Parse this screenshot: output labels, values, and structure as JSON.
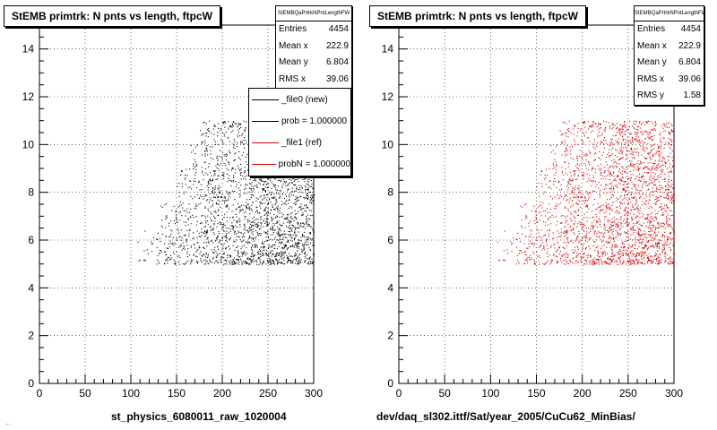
{
  "footer_text": "...",
  "colors": {
    "left_series": "#000000",
    "right_series": "#d40000",
    "legend_ref": "#d40000",
    "legend_new": "#000000"
  },
  "chart_data": [
    {
      "type": "scatter",
      "title": "StEMB primtrk: N pnts vs length, ftpcW",
      "xlabel": "st_physics_6080011_raw_1020004",
      "ylabel": "",
      "xlim": [
        0,
        300
      ],
      "ylim": [
        0,
        15
      ],
      "xticks": [
        "0",
        "50",
        "100",
        "150",
        "200",
        "250",
        "300"
      ],
      "yticks": [
        "0",
        "2",
        "4",
        "6",
        "8",
        "10",
        "12",
        "14"
      ],
      "grid": true,
      "series": [
        {
          "name": "_file0 (new)",
          "color": "#000000",
          "entries": 4454,
          "x_range": [
            105,
            300
          ],
          "y_range": [
            5,
            11
          ],
          "density": "dense"
        }
      ],
      "stats": {
        "header": "StEMBQaPrtrkNPntLengthFW",
        "rows": [
          {
            "label": "Entries",
            "value": "4454"
          },
          {
            "label": "Mean x",
            "value": "222.9"
          },
          {
            "label": "Mean y",
            "value": "6.804"
          },
          {
            "label": "RMS x",
            "value": "39.06"
          }
        ]
      },
      "legend": {
        "placement": "top-right",
        "entries": [
          {
            "label": "_file0 (new)",
            "color": "#000000"
          },
          {
            "label": "prob = 1.000000",
            "color": "#000000"
          },
          {
            "label": "_file1 (ref)",
            "color": "#d40000"
          },
          {
            "label": "probN = 1.000000",
            "color": "#d40000"
          }
        ]
      }
    },
    {
      "type": "scatter",
      "title": "StEMB primtrk: N pnts vs length, ftpcW",
      "xlabel": "dev/daq_sl302.ittf/Sat/year_2005/CuCu62_MinBias/",
      "ylabel": "",
      "xlim": [
        0,
        300
      ],
      "ylim": [
        0,
        15
      ],
      "xticks": [
        "0",
        "50",
        "100",
        "150",
        "200",
        "250",
        "300"
      ],
      "yticks": [
        "0",
        "2",
        "4",
        "6",
        "8",
        "10",
        "12",
        "14"
      ],
      "grid": true,
      "series": [
        {
          "name": "_file1 (ref)",
          "color": "#d40000",
          "entries": 4454,
          "x_range": [
            105,
            300
          ],
          "y_range": [
            5,
            11
          ],
          "density": "dense"
        }
      ],
      "stats": {
        "header": "StEMBQaPrtrkNPntLengthFW",
        "rows": [
          {
            "label": "Entries",
            "value": "4454"
          },
          {
            "label": "Mean x",
            "value": "222.9"
          },
          {
            "label": "Mean y",
            "value": "6.804"
          },
          {
            "label": "RMS x",
            "value": "39.06"
          },
          {
            "label": "RMS y",
            "value": "1.58"
          }
        ]
      }
    }
  ]
}
